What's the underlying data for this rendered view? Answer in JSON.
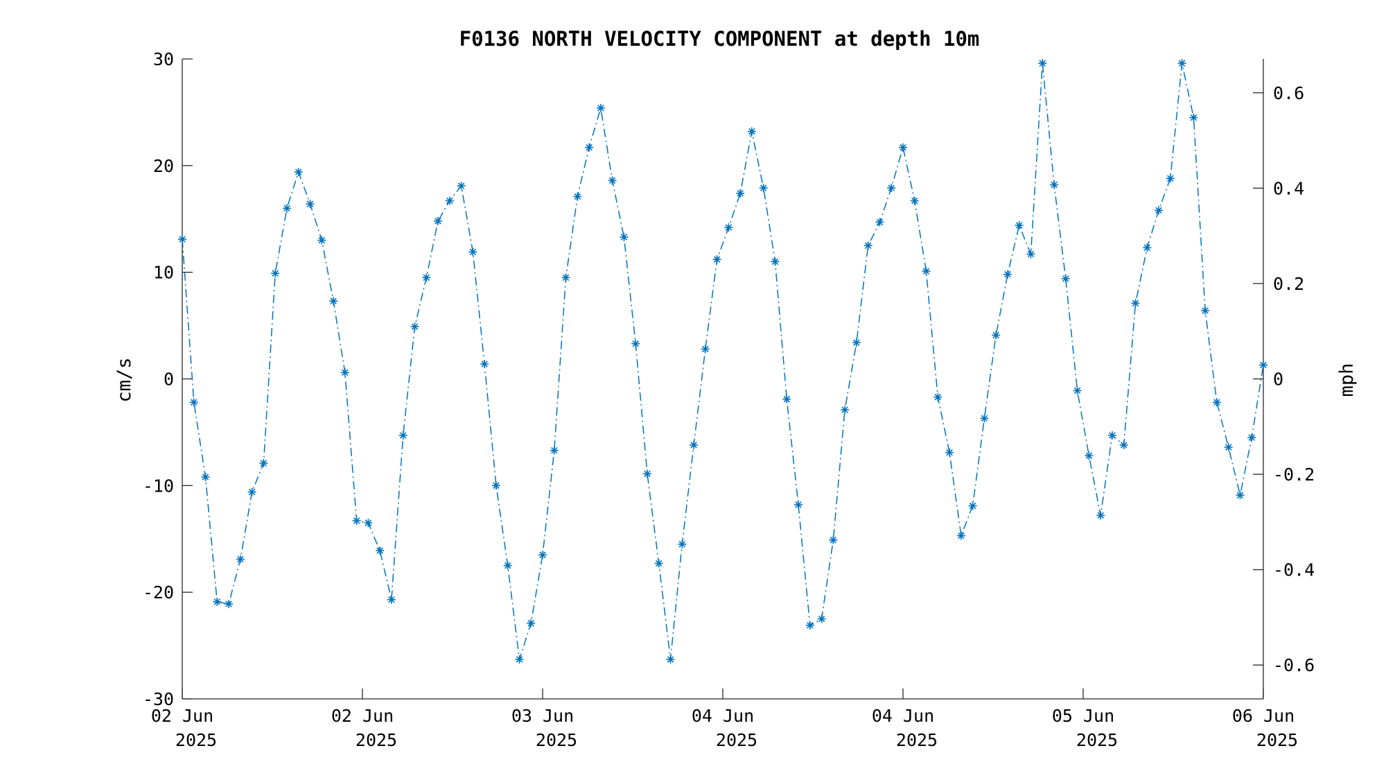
{
  "chart_data": {
    "type": "line",
    "title": "F0136 NORTH VELOCITY COMPONENT at depth 10m",
    "ylabel": "cm/s",
    "y2label": "mph",
    "ylim": [
      -30,
      30
    ],
    "y2lim": [
      -0.671,
      0.671
    ],
    "x_ticks": [
      {
        "line1": "02 Jun",
        "line2": "2025"
      },
      {
        "line1": "02 Jun",
        "line2": "2025"
      },
      {
        "line1": "03 Jun",
        "line2": "2025"
      },
      {
        "line1": "04 Jun",
        "line2": "2025"
      },
      {
        "line1": "04 Jun",
        "line2": "2025"
      },
      {
        "line1": "05 Jun",
        "line2": "2025"
      },
      {
        "line1": "06 Jun",
        "line2": "2025"
      }
    ],
    "y_ticks": [
      "30",
      "20",
      "10",
      "0",
      "-10",
      "-20",
      "-30"
    ],
    "y_tick_values": [
      30,
      20,
      10,
      0,
      -10,
      -20,
      -30
    ],
    "y2_ticks": [
      "0.6",
      "0.4",
      "0.2",
      "0",
      "-0.2",
      "-0.4",
      "-0.6"
    ],
    "y2_tick_values": [
      0.6,
      0.4,
      0.2,
      0,
      -0.2,
      -0.4,
      -0.6
    ],
    "grid": false,
    "series": [
      {
        "color": "#0072BD",
        "marker": "asterisk",
        "line_style": "dash-dot",
        "values": [
          13.1,
          -2.2,
          -9.2,
          -20.9,
          -21.1,
          -16.9,
          -10.6,
          -7.9,
          9.9,
          16.0,
          19.4,
          16.4,
          13.0,
          7.3,
          0.6,
          -13.3,
          -13.5,
          -16.1,
          -20.7,
          -5.3,
          4.9,
          9.5,
          14.8,
          16.7,
          18.1,
          11.9,
          1.4,
          -10.0,
          -17.5,
          -26.3,
          -22.9,
          -16.5,
          -6.7,
          9.5,
          17.1,
          21.7,
          25.4,
          18.6,
          13.3,
          3.3,
          -8.9,
          -17.3,
          -26.3,
          -15.5,
          -6.2,
          2.8,
          11.2,
          14.2,
          17.4,
          23.2,
          17.9,
          11.0,
          -1.9,
          -11.8,
          -23.1,
          -22.5,
          -15.1,
          -2.9,
          3.4,
          12.5,
          14.7,
          17.9,
          21.7,
          16.7,
          10.1,
          -1.7,
          -6.9,
          -14.7,
          -11.9,
          -3.7,
          4.1,
          9.8,
          14.4,
          11.7,
          29.6,
          18.2,
          9.4,
          -1.1,
          -7.2,
          -12.8,
          -5.3,
          -6.2,
          7.1,
          12.3,
          15.8,
          18.8,
          29.6,
          24.5,
          6.4,
          -2.2,
          -6.4,
          -10.9,
          -5.5,
          1.3
        ]
      }
    ]
  }
}
